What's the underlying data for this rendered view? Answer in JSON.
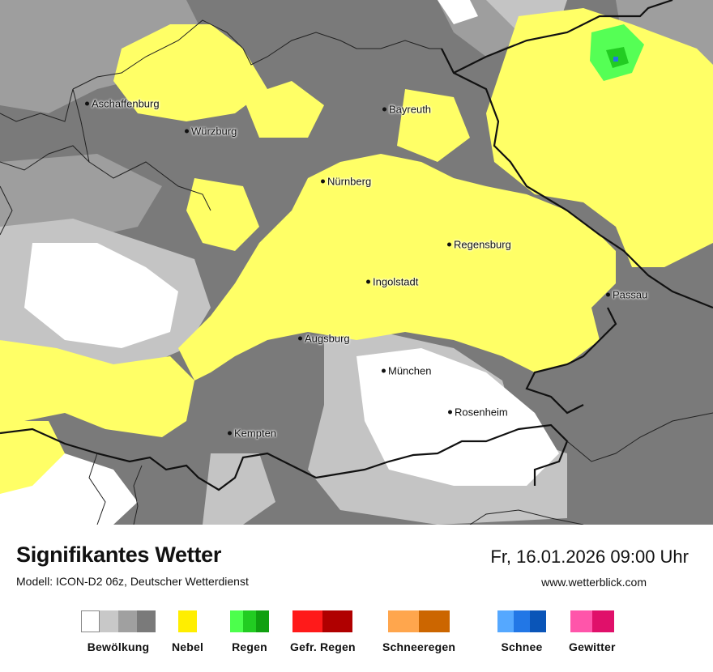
{
  "map": {
    "cities": [
      {
        "name": "Aschaffenburg",
        "id": "aschaffenburg"
      },
      {
        "name": "Würzburg",
        "id": "wuerzburg"
      },
      {
        "name": "Bayreuth",
        "id": "bayreuth"
      },
      {
        "name": "Nürnberg",
        "id": "nuernberg"
      },
      {
        "name": "Regensburg",
        "id": "regensburg"
      },
      {
        "name": "Ingolstadt",
        "id": "ingolstadt"
      },
      {
        "name": "Passau",
        "id": "passau"
      },
      {
        "name": "Augsburg",
        "id": "augsburg"
      },
      {
        "name": "München",
        "id": "muenchen"
      },
      {
        "name": "Rosenheim",
        "id": "rosenheim"
      },
      {
        "name": "Kempten",
        "id": "kempten"
      }
    ],
    "colors": {
      "cloud_dark": "#7a7a7a",
      "cloud_mid": "#9e9e9e",
      "cloud_light": "#c4c4c4",
      "clear": "#ffffff",
      "fog": "#ffff66",
      "rain_light": "#55ff55"
    }
  },
  "footer": {
    "title": "Signifikantes Wetter",
    "subtitle": "Modell: ICON-D2 06z, Deutscher Wetterdienst",
    "datetime": "Fr, 16.01.2026 09:00 Uhr",
    "website": "www.wetterblick.com"
  },
  "legend": [
    {
      "label": "Bewölkung",
      "colors": [
        "#ffffff",
        "#c8c8c8",
        "#a0a0a0",
        "#7a7a7a"
      ]
    },
    {
      "label": "Nebel",
      "colors": [
        "#ffee00"
      ]
    },
    {
      "label": "Regen",
      "colors": [
        "#4cff4c",
        "#22cc22",
        "#10a010"
      ]
    },
    {
      "label": "Gefr. Regen",
      "colors": [
        "#ff1a1a",
        "#b00000"
      ]
    },
    {
      "label": "Schneeregen",
      "colors": [
        "#ffa64d",
        "#cc6600"
      ]
    },
    {
      "label": "Schnee",
      "colors": [
        "#55a8ff",
        "#2277e6",
        "#0a55b8"
      ]
    },
    {
      "label": "Gewitter",
      "colors": [
        "#ff55aa",
        "#e0106a"
      ]
    }
  ]
}
